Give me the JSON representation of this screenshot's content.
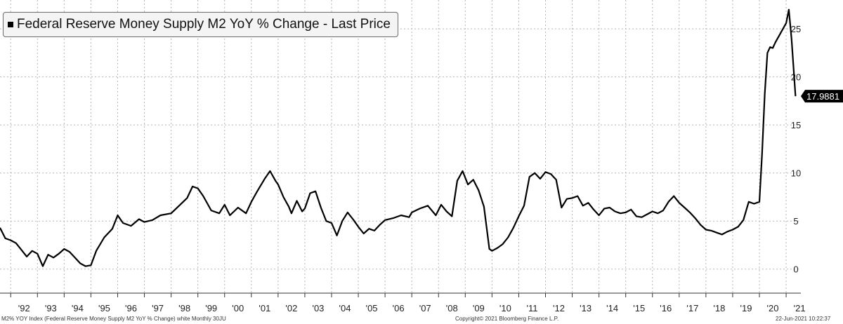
{
  "chart_data": {
    "type": "line",
    "title": "Federal Reserve Money Supply M2 YoY % Change - Last Price",
    "xlabel": "",
    "ylabel": "",
    "ylim": [
      -2.5,
      28
    ],
    "xlim": [
      1991.6,
      2021.55
    ],
    "y_ticks": [
      0,
      5,
      10,
      15,
      20,
      25
    ],
    "y_tick_labels": [
      "0",
      "5",
      "10",
      "15",
      "20",
      "25"
    ],
    "x_tick_labels": [
      "'92",
      "'93",
      "'94",
      "'95",
      "'96",
      "'97",
      "'98",
      "'99",
      "'00",
      "'01",
      "'02",
      "'03",
      "'04",
      "'05",
      "'06",
      "'07",
      "'08",
      "'09",
      "'10",
      "'11",
      "'12",
      "'13",
      "'14",
      "'15",
      "'16",
      "'17",
      "'18",
      "'19",
      "'20",
      "'21"
    ],
    "grid": true,
    "last_value_label": "17.9881",
    "series": [
      {
        "name": "Federal Reserve Money Supply M2 YoY % Change",
        "color": "#000000",
        "x": [
          1991.6,
          1991.8,
          1992.0,
          1992.2,
          1992.4,
          1992.6,
          1992.8,
          1993.0,
          1993.2,
          1993.4,
          1993.6,
          1993.8,
          1994.0,
          1994.2,
          1994.4,
          1994.6,
          1994.8,
          1995.0,
          1995.2,
          1995.5,
          1995.8,
          1996.0,
          1996.2,
          1996.5,
          1996.8,
          1997.0,
          1997.3,
          1997.6,
          1998.0,
          1998.3,
          1998.6,
          1998.8,
          1999.0,
          1999.2,
          1999.5,
          1999.8,
          2000.0,
          2000.2,
          2000.5,
          2000.8,
          2001.0,
          2001.2,
          2001.5,
          2001.7,
          2001.9,
          2002.0,
          2002.2,
          2002.4,
          2002.5,
          2002.7,
          2002.9,
          2003.0,
          2003.2,
          2003.4,
          2003.6,
          2003.8,
          2004.0,
          2004.2,
          2004.4,
          2004.6,
          2004.8,
          2005.0,
          2005.2,
          2005.4,
          2005.6,
          2005.8,
          2006.0,
          2006.3,
          2006.6,
          2006.9,
          2007.0,
          2007.3,
          2007.6,
          2007.9,
          2008.1,
          2008.3,
          2008.5,
          2008.7,
          2008.9,
          2009.1,
          2009.3,
          2009.5,
          2009.7,
          2009.9,
          2010.0,
          2010.2,
          2010.4,
          2010.6,
          2010.8,
          2011.0,
          2011.2,
          2011.4,
          2011.6,
          2011.8,
          2012.0,
          2012.2,
          2012.4,
          2012.6,
          2012.8,
          2013.0,
          2013.2,
          2013.4,
          2013.6,
          2013.8,
          2014.0,
          2014.2,
          2014.4,
          2014.6,
          2014.8,
          2015.0,
          2015.2,
          2015.4,
          2015.6,
          2015.8,
          2016.0,
          2016.2,
          2016.4,
          2016.6,
          2016.8,
          2017.0,
          2017.2,
          2017.4,
          2017.6,
          2017.8,
          2018.0,
          2018.2,
          2018.4,
          2018.6,
          2018.8,
          2019.0,
          2019.2,
          2019.4,
          2019.6,
          2019.8,
          2020.0,
          2020.1,
          2020.2,
          2020.3,
          2020.4,
          2020.5,
          2020.6,
          2020.8,
          2021.0,
          2021.1,
          2021.2,
          2021.35
        ],
        "values": [
          4.3,
          3.2,
          3.0,
          2.7,
          2.0,
          1.3,
          1.9,
          1.6,
          0.3,
          1.5,
          1.2,
          1.6,
          2.1,
          1.8,
          1.2,
          0.6,
          0.3,
          0.4,
          1.9,
          3.3,
          4.2,
          5.6,
          4.8,
          4.5,
          5.2,
          4.9,
          5.1,
          5.6,
          5.8,
          6.6,
          7.4,
          8.6,
          8.4,
          7.6,
          6.1,
          5.8,
          6.7,
          5.6,
          6.4,
          5.8,
          7.0,
          8.0,
          9.4,
          10.2,
          9.2,
          8.8,
          7.5,
          6.5,
          5.8,
          7.1,
          6.0,
          6.3,
          7.9,
          8.1,
          6.4,
          5.0,
          4.8,
          3.5,
          5.0,
          5.9,
          5.2,
          4.4,
          3.7,
          4.2,
          4.0,
          4.6,
          5.1,
          5.3,
          5.6,
          5.4,
          5.9,
          6.3,
          6.6,
          5.6,
          6.7,
          6.0,
          5.5,
          9.2,
          10.2,
          8.8,
          9.3,
          8.2,
          6.5,
          2.1,
          1.9,
          2.2,
          2.6,
          3.3,
          4.3,
          5.5,
          6.6,
          9.6,
          10.0,
          9.4,
          10.1,
          9.9,
          9.3,
          6.4,
          7.3,
          7.4,
          7.6,
          6.6,
          6.9,
          6.2,
          5.6,
          6.3,
          6.4,
          6.0,
          5.8,
          5.9,
          6.2,
          5.5,
          5.4,
          5.7,
          6.0,
          5.8,
          6.1,
          7.0,
          7.6,
          6.9,
          6.4,
          5.9,
          5.3,
          4.6,
          4.1,
          4.0,
          3.8,
          3.6,
          3.9,
          4.1,
          4.4,
          5.1,
          7.0,
          6.8,
          7.0,
          12.0,
          18.2,
          22.5,
          23.1,
          23.0,
          23.6,
          24.6,
          25.6,
          27.0,
          24.0,
          17.99
        ]
      }
    ]
  },
  "footer": {
    "left": "M2% YOY Index (Federal Reserve Money Supply M2 YoY % Change) white  Monthly 30JU",
    "center": "Copyright© 2021 Bloomberg Finance L.P.",
    "right": "22-Jun-2021 10:22:37"
  }
}
